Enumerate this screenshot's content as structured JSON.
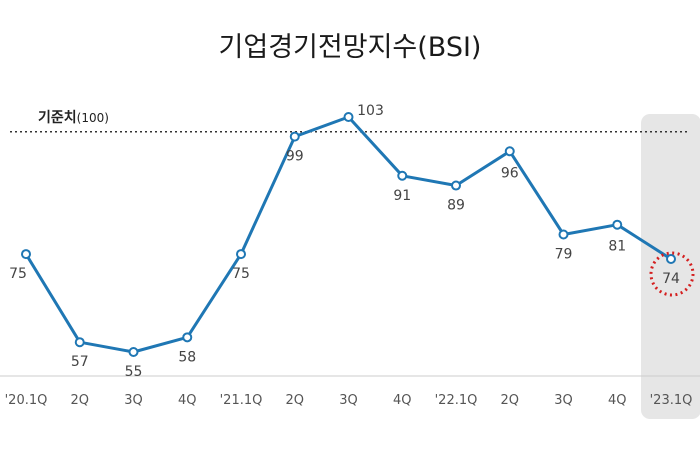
{
  "chart_data": {
    "type": "line",
    "title": "기업경기전망지수(BSI)",
    "reference": {
      "label": "기준치",
      "value_label": "(100)",
      "value": 100,
      "style": "dotted"
    },
    "categories": [
      "'20.1Q",
      "2Q",
      "3Q",
      "4Q",
      "'21.1Q",
      "2Q",
      "3Q",
      "4Q",
      "'22.1Q",
      "2Q",
      "3Q",
      "4Q",
      "'23.1Q"
    ],
    "series": [
      {
        "values": [
          75,
          57,
          55,
          58,
          75,
          99,
          103,
          91,
          89,
          96,
          79,
          81,
          74
        ]
      }
    ],
    "ylim": [
      45,
      105
    ],
    "highlight": {
      "category": "'23.1Q",
      "shaded": true,
      "circled": true
    },
    "grid": false,
    "colors": {
      "line": "#1f77b4",
      "marker_fill": "#ffffff",
      "highlight_band": "#e6e6e6",
      "circle": "#d42020",
      "baseline": "#cccccc",
      "reference": "#333333"
    }
  }
}
